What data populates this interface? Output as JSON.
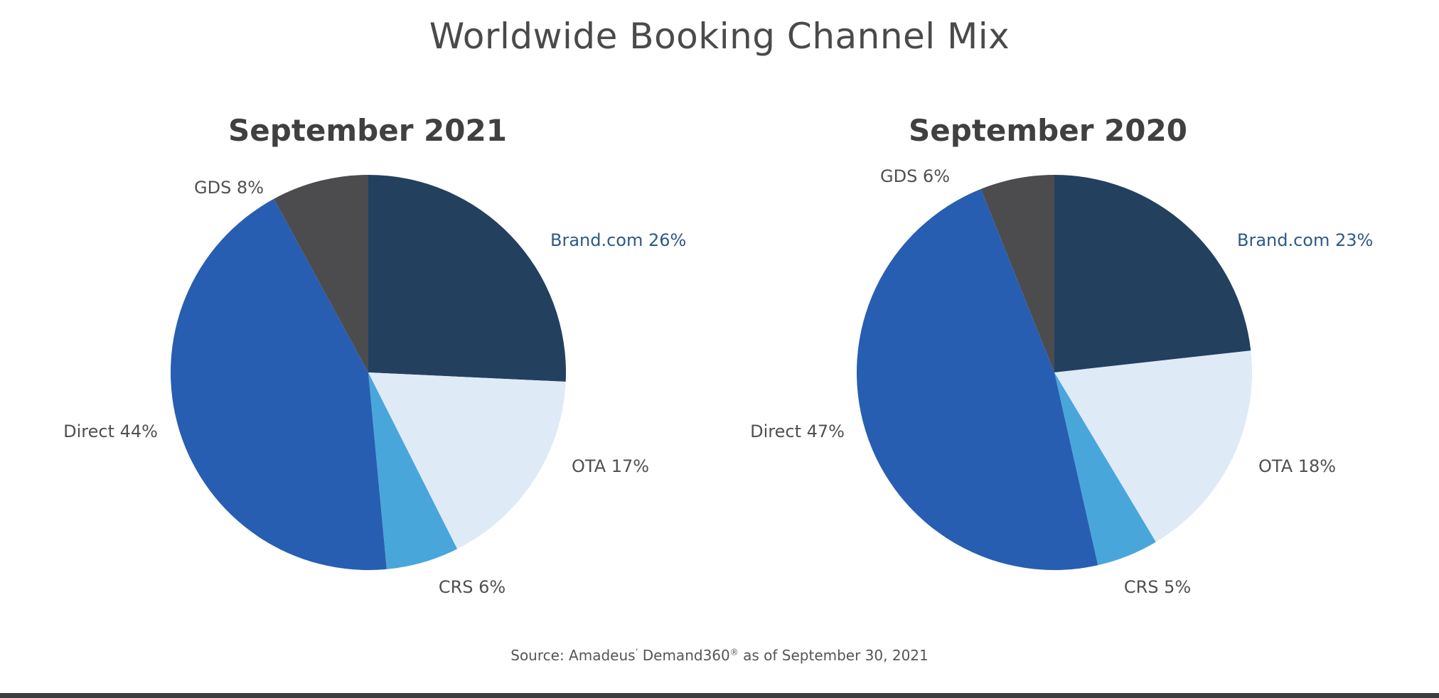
{
  "page": {
    "title": "Worldwide Booking Channel Mix",
    "source_prefix": "Source: Amadeus",
    "source_mark": "’",
    "source_product": " Demand360",
    "source_registered": "®",
    "source_suffix": " as of September 30, 2021"
  },
  "colors": {
    "Brand.com": "#23405f",
    "OTA": "#dfeaf7",
    "CRS": "#49a6da",
    "Direct": "#285eb1",
    "GDS": "#4c4c4e",
    "brand_label": "#2d5a88",
    "label": "#505050"
  },
  "chart_data": [
    {
      "type": "pie",
      "title": "September 2021",
      "slices": [
        {
          "name": "Brand.com",
          "value": 26,
          "label": "Brand.com 26%"
        },
        {
          "name": "OTA",
          "value": 17,
          "label": "OTA 17%"
        },
        {
          "name": "CRS",
          "value": 6,
          "label": "CRS 6%"
        },
        {
          "name": "Direct",
          "value": 44,
          "label": "Direct 44%"
        },
        {
          "name": "GDS",
          "value": 8,
          "label": "GDS 8%"
        }
      ]
    },
    {
      "type": "pie",
      "title": "September 2020",
      "slices": [
        {
          "name": "Brand.com",
          "value": 23,
          "label": "Brand.com 23%"
        },
        {
          "name": "OTA",
          "value": 18,
          "label": "OTA 18%"
        },
        {
          "name": "CRS",
          "value": 5,
          "label": "CRS 5%"
        },
        {
          "name": "Direct",
          "value": 47,
          "label": "Direct 47%"
        },
        {
          "name": "GDS",
          "value": 6,
          "label": "GDS 6%"
        }
      ]
    }
  ]
}
